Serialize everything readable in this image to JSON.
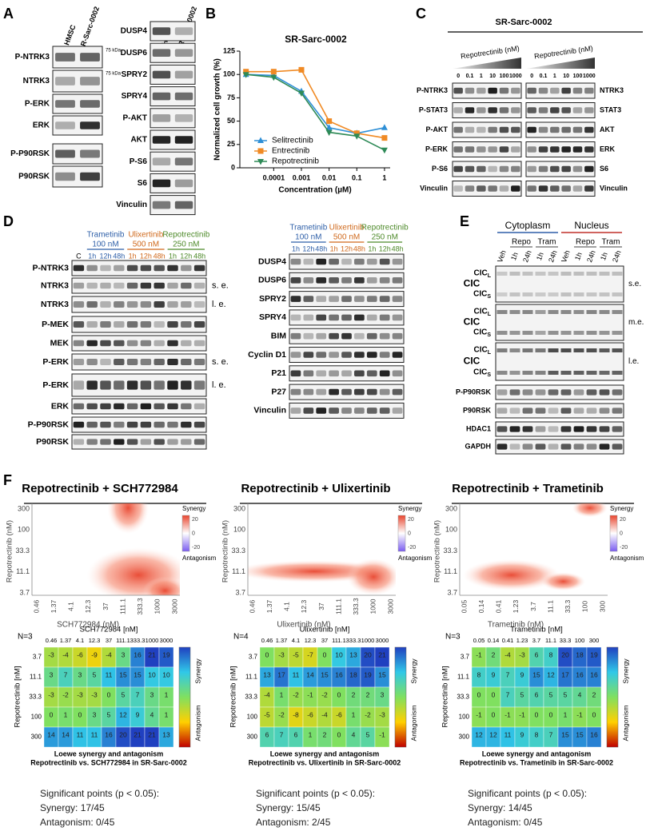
{
  "panel_labels": [
    "A",
    "B",
    "C",
    "D",
    "E",
    "F"
  ],
  "A": {
    "headers": [
      "HMSC",
      "SR-Sarc-0002"
    ],
    "left_rows": [
      "P-NTRK3",
      "NTRK3",
      "P-ERK",
      "ERK",
      "P-P90RSK",
      "P90RSK"
    ],
    "right_rows": [
      "DUSP4",
      "DUSP6",
      "SPRY2",
      "SPRY4",
      "P-AKT",
      "AKT",
      "P-S6",
      "S6",
      "Vinculin"
    ],
    "markers": [
      "75 kDa",
      "75 kDa"
    ]
  },
  "chart_data": {
    "type": "line",
    "title": "SR-Sarc-0002",
    "x_label": "Concentration (µM)",
    "y_label": "Normalized cell growth (%)",
    "x_scale": "log",
    "x": [
      1e-05,
      0.0001,
      0.001,
      0.01,
      0.1,
      1
    ],
    "xlim": [
      6e-06,
      1.6
    ],
    "xticks": [
      0.0001,
      0.001,
      0.01,
      0.1,
      1
    ],
    "ylim": [
      0,
      125
    ],
    "yticks": [
      0,
      25,
      50,
      75,
      100,
      125
    ],
    "grid": false,
    "legend_position": "lower-left",
    "series": [
      {
        "name": "Selitrectinib",
        "color": "#2e8fd6",
        "marker": "triangle-up",
        "values": [
          100,
          99,
          82,
          43,
          37,
          43
        ]
      },
      {
        "name": "Entrectinib",
        "color": "#f08a24",
        "marker": "square",
        "values": [
          103,
          103,
          105,
          50,
          37,
          32
        ]
      },
      {
        "name": "Repotrectinib",
        "color": "#2e8a57",
        "marker": "triangle-down",
        "values": [
          100,
          97,
          80,
          38,
          34,
          19
        ]
      }
    ]
  },
  "C": {
    "title": "SR-Sarc-0002",
    "treatment": "Repotrectinib (nM)",
    "doses": [
      0,
      0.1,
      1,
      10,
      100,
      1000
    ],
    "left_rows": [
      "P-NTRK3",
      "P-STAT3",
      "P-AKT",
      "P-ERK",
      "P-S6",
      "Vinculin"
    ],
    "right_rows": [
      "NTRK3",
      "STAT3",
      "AKT",
      "ERK",
      "S6",
      "Vinculin"
    ]
  },
  "D": {
    "treatments": [
      {
        "name": "Trametinib",
        "dose": "100 nM",
        "color": "#2e5fa8"
      },
      {
        "name": "Ulixertinib",
        "dose": "500 nM",
        "color": "#d0691c"
      },
      {
        "name": "Repotrectinib",
        "dose": "250 nM",
        "color": "#4e8a2a"
      }
    ],
    "control": "C",
    "times": [
      "1h",
      "12h",
      "48h"
    ],
    "left_rows": [
      {
        "label": "P-NTRK3"
      },
      {
        "label": "NTRK3",
        "note": "s. e."
      },
      {
        "label": "NTRK3",
        "note": "l. e."
      },
      {
        "label": "P-MEK"
      },
      {
        "label": "MEK"
      },
      {
        "label": "P-ERK",
        "note": "s. e."
      },
      {
        "label": "P-ERK",
        "note": "l. e."
      },
      {
        "label": "ERK"
      },
      {
        "label": "P-P90RSK"
      },
      {
        "label": "P90RSK"
      }
    ],
    "right_rows": [
      "DUSP4",
      "DUSP6",
      "SPRY2",
      "SPRY4",
      "BIM",
      "Cyclin D1",
      "P21",
      "P27",
      "Vinculin"
    ]
  },
  "E": {
    "groups": [
      "Cytoplasm",
      "Nucleus"
    ],
    "drugs": [
      "Repo",
      "Tram"
    ],
    "lanes": [
      "Veh",
      "1h",
      "24h",
      "1h",
      "24h"
    ],
    "cic_label": "CIC",
    "cic_bands": [
      {
        "text": "CIC",
        "sub": "L"
      },
      {
        "text": "CIC",
        "sub": "S"
      }
    ],
    "exposures": [
      "s.e.",
      "m.e.",
      "l.e."
    ],
    "rows": [
      "P-P90RSK",
      "P90RSK",
      "HDAC1",
      "GAPDH"
    ]
  },
  "F": {
    "y_label": "Repotrectinib (nM)",
    "hm_y_label": "Repotrectinib [nM]",
    "legend": {
      "top": "Synergy",
      "bottom": "Antagonism",
      "ticks": [
        20,
        0,
        -20
      ]
    },
    "caption1": "Loewe synergy and antagonism",
    "sig": "Significant points (p < 0.05):",
    "row_doses": [
      3.7,
      11.1,
      33.3,
      100,
      300
    ],
    "panels": [
      {
        "title": "Repotrectinib + SCH772984",
        "x_label": "SCH772984 (nM)",
        "hm_x_label": "SCH772984 [nM]",
        "n": "N=3",
        "col_doses": [
          0.46,
          1.37,
          4.1,
          12.3,
          37,
          111.1,
          333.3,
          1000,
          3000
        ],
        "caption2": "Repotrectinib vs. SCH772984 in SR-Sarc-0002",
        "synergy": "Synergy: 17/45",
        "antagonism": "Antagonism: 0/45",
        "values": [
          [
            -3,
            -4,
            -6,
            -9,
            -4,
            3,
            16,
            21,
            19
          ],
          [
            3,
            7,
            3,
            5,
            11,
            15,
            15,
            10,
            10
          ],
          [
            -3,
            -2,
            -3,
            -3,
            0,
            5,
            7,
            3,
            1
          ],
          [
            0,
            1,
            0,
            3,
            5,
            12,
            9,
            4,
            1
          ],
          [
            14,
            14,
            11,
            11,
            16,
            20,
            21,
            21,
            13
          ]
        ]
      },
      {
        "title": "Repotrectinib + Ulixertinib",
        "x_label": "Ulixertinib (nM)",
        "hm_x_label": "Ulixertinib [nM]",
        "n": "N=4",
        "col_doses": [
          0.46,
          1.37,
          4.1,
          12.3,
          37,
          111.1,
          333.3,
          1000,
          3000
        ],
        "caption2": "Repotrectinib vs. Ulixertinib in SR-Sarc-0002",
        "synergy": "Synergy: 15/45",
        "antagonism": "Antagonism: 2/45",
        "values": [
          [
            0,
            -3,
            -5,
            -7,
            0,
            10,
            13,
            20,
            21
          ],
          [
            13,
            17,
            11,
            14,
            15,
            16,
            18,
            19,
            15
          ],
          [
            -4,
            1,
            -2,
            -1,
            -2,
            0,
            2,
            2,
            3
          ],
          [
            -5,
            -2,
            -8,
            -6,
            -4,
            -6,
            1,
            -2,
            -3
          ],
          [
            6,
            7,
            6,
            1,
            2,
            0,
            4,
            5,
            -1
          ]
        ]
      },
      {
        "title": "Repotrectinib + Trametinib",
        "x_label": "Trametinib (nM)",
        "hm_x_label": "Trametinib [nM]",
        "n": "N=3",
        "col_doses": [
          0.05,
          0.14,
          0.41,
          1.23,
          3.7,
          11.1,
          33.3,
          100,
          300
        ],
        "caption2": "Repotrectinib vs. Trametinib in SR-Sarc-0002",
        "synergy": "Synergy: 14/45",
        "antagonism": "Antagonism: 0/45",
        "values": [
          [
            -1,
            2,
            -4,
            -3,
            6,
            8,
            20,
            18,
            19
          ],
          [
            8,
            9,
            7,
            9,
            15,
            12,
            17,
            16,
            16
          ],
          [
            0,
            0,
            7,
            5,
            6,
            5,
            5,
            4,
            2
          ],
          [
            -1,
            0,
            -1,
            -1,
            0,
            0,
            1,
            -1,
            0
          ],
          [
            12,
            12,
            11,
            9,
            8,
            7,
            15,
            15,
            16
          ]
        ]
      }
    ]
  }
}
